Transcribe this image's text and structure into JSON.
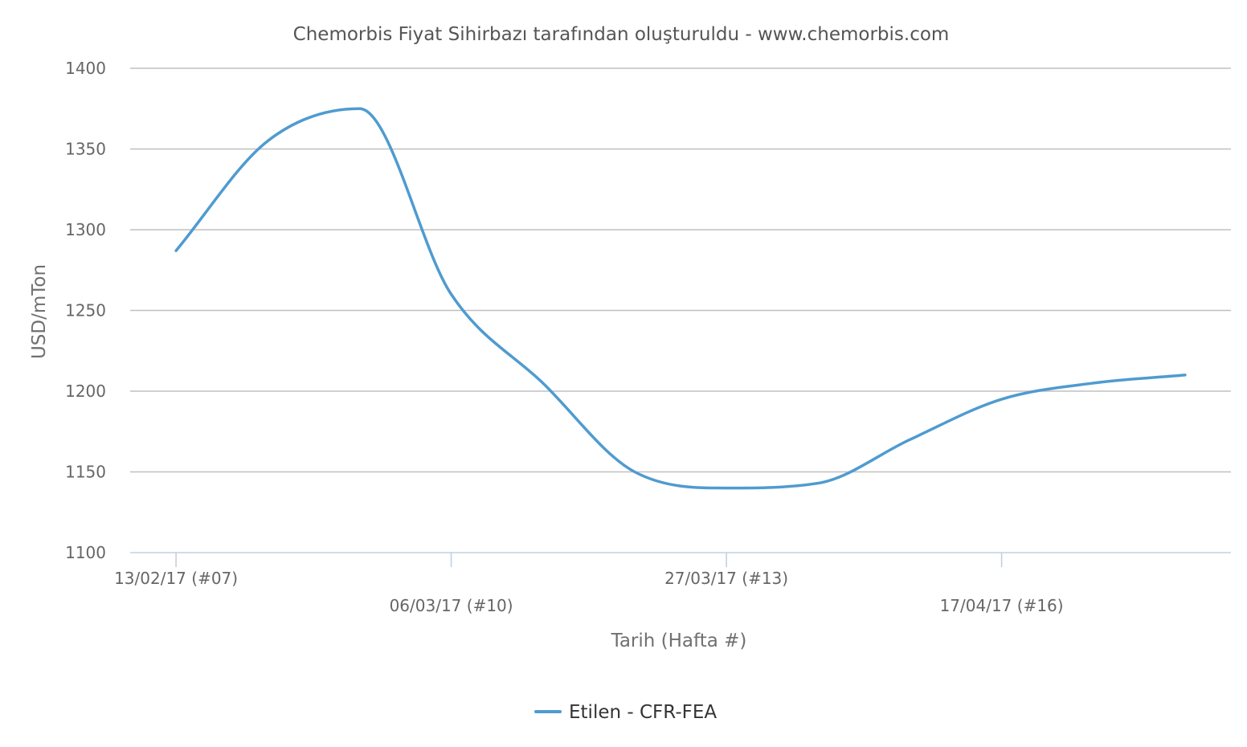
{
  "chart_data": {
    "type": "line",
    "title": "Chemorbis Fiyat Sihirbazı tarafından oluşturuldu - www.chemorbis.com",
    "xlabel": "Tarih (Hafta #)",
    "ylabel": "USD/mTon",
    "ylim": [
      1100,
      1400
    ],
    "yticks": [
      1100,
      1150,
      1200,
      1250,
      1300,
      1350,
      1400
    ],
    "xticks": [
      {
        "week": 7,
        "label": "13/02/17 (#07)"
      },
      {
        "week": 10,
        "label": "06/03/17 (#10)"
      },
      {
        "week": 13,
        "label": "27/03/17 (#13)"
      },
      {
        "week": 16,
        "label": "17/04/17 (#16)"
      }
    ],
    "xlim_weeks": [
      6.5,
      18.5
    ],
    "grid": true,
    "legend_position": "bottom-center",
    "series": [
      {
        "name": "Etilen - CFR-FEA",
        "color": "#4f9bd0",
        "x_weeks": [
          7,
          8,
          9,
          10,
          11,
          12,
          13,
          14,
          15,
          16,
          17,
          18
        ],
        "values": [
          1287,
          1355,
          1375,
          1260,
          1205,
          1150,
          1140,
          1143,
          1170,
          1195,
          1205,
          1210
        ]
      }
    ]
  }
}
